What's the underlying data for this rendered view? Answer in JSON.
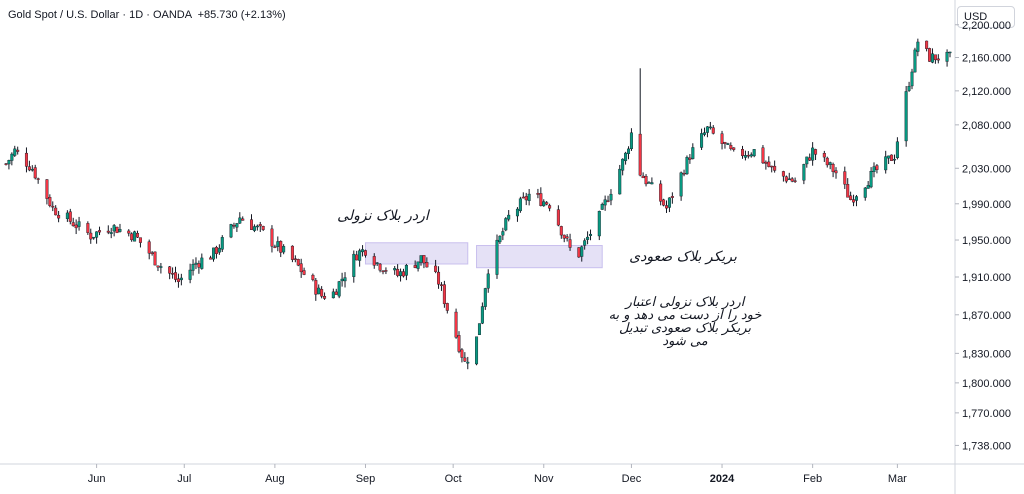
{
  "header": {
    "symbol": "Gold Spot / U.S. Dollar",
    "sep1": "·",
    "timeframe": "1D",
    "sep2": "·",
    "source": "OANDA",
    "change": "+85.730 (+2.13%)"
  },
  "currency_button": "USD",
  "annotations": {
    "bearish_order_block": "اردر بلاک نزولی",
    "bullish_breaker_block": "بریکر بلاک صعودی",
    "explanation": [
      "اردر بلاک نزولی اعتبار",
      "خود را از دست می دهد و به",
      "بریکر بلاک صعودی تبدیل",
      "می شود"
    ]
  },
  "colors": {
    "up": "#089981",
    "down": "#f23645",
    "wick": "#131722",
    "zone_fill": "#e1dcf5",
    "zone_stroke": "#c9bfee",
    "axis_text": "#131722",
    "grid": "#f0f3fa"
  },
  "chart_data": {
    "type": "candlestick",
    "instrument": "Gold Spot / U.S. Dollar",
    "interval": "1D",
    "ylim": [
      1720,
      2196
    ],
    "y_scale": "log",
    "y_ticks": [
      "1,738.000",
      "1,770.000",
      "1,800.000",
      "1,830.000",
      "1,870.000",
      "1,910.000",
      "1,950.000",
      "1,990.000",
      "2,030.000",
      "2,080.000",
      "2,120.000",
      "2,160.000",
      "2,200.000"
    ],
    "y_tick_values": [
      1738,
      1770,
      1800,
      1830,
      1870,
      1910,
      1950,
      1990,
      2030,
      2080,
      2120,
      2160,
      2200
    ],
    "x_ticks": [
      {
        "label": "Jun",
        "date": "2023-06-01",
        "bold": false
      },
      {
        "label": "Jul",
        "date": "2023-07-01",
        "bold": false
      },
      {
        "label": "Aug",
        "date": "2023-08-01",
        "bold": false
      },
      {
        "label": "Sep",
        "date": "2023-09-01",
        "bold": false
      },
      {
        "label": "Oct",
        "date": "2023-10-01",
        "bold": false
      },
      {
        "label": "Nov",
        "date": "2023-11-01",
        "bold": false
      },
      {
        "label": "Dec",
        "date": "2023-12-01",
        "bold": false
      },
      {
        "label": "2024",
        "date": "2024-01-01",
        "bold": true
      },
      {
        "label": "Feb",
        "date": "2024-02-01",
        "bold": false
      },
      {
        "label": "Mar",
        "date": "2024-03-01",
        "bold": false
      }
    ],
    "zones": [
      {
        "name": "bearish-order-block",
        "from_date": "2023-09-01",
        "to_date": "2023-10-06",
        "top": 1947,
        "bottom": 1924
      },
      {
        "name": "bullish-breaker-block",
        "from_date": "2023-10-09",
        "to_date": "2023-11-21",
        "top": 1944,
        "bottom": 1920
      }
    ],
    "anchors": [
      [
        "2023-05-01",
        2035
      ],
      [
        "2023-05-04",
        2050
      ],
      [
        "2023-05-10",
        2030
      ],
      [
        "2023-05-17",
        1985
      ],
      [
        "2023-05-30",
        1955
      ],
      [
        "2023-06-06",
        1965
      ],
      [
        "2023-06-14",
        1955
      ],
      [
        "2023-06-22",
        1925
      ],
      [
        "2023-06-29",
        1905
      ],
      [
        "2023-07-05",
        1925
      ],
      [
        "2023-07-11",
        1935
      ],
      [
        "2023-07-20",
        1975
      ],
      [
        "2023-07-27",
        1960
      ],
      [
        "2023-08-08",
        1925
      ],
      [
        "2023-08-17",
        1890
      ],
      [
        "2023-08-21",
        1893
      ],
      [
        "2023-08-29",
        1935
      ],
      [
        "2023-09-01",
        1940
      ],
      [
        "2023-09-05",
        1925
      ],
      [
        "2023-09-12",
        1912
      ],
      [
        "2023-09-20",
        1930
      ],
      [
        "2023-09-26",
        1905
      ],
      [
        "2023-10-05",
        1820
      ],
      [
        "2023-10-09",
        1845
      ],
      [
        "2023-10-13",
        1920
      ],
      [
        "2023-10-20",
        1975
      ],
      [
        "2023-10-27",
        2000
      ],
      [
        "2023-11-03",
        1990
      ],
      [
        "2023-11-10",
        1940
      ],
      [
        "2023-11-13",
        1935
      ],
      [
        "2023-11-20",
        1975
      ],
      [
        "2023-11-29",
        2045
      ],
      [
        "2023-12-01",
        2070
      ],
      [
        "2023-12-04",
        2025
      ],
      [
        "2023-12-13",
        1985
      ],
      [
        "2023-12-21",
        2045
      ],
      [
        "2023-12-27",
        2075
      ],
      [
        "2024-01-05",
        2045
      ],
      [
        "2024-01-12",
        2050
      ],
      [
        "2024-01-19",
        2025
      ],
      [
        "2024-01-26",
        2015
      ],
      [
        "2024-02-01",
        2050
      ],
      [
        "2024-02-09",
        2025
      ],
      [
        "2024-02-14",
        1995
      ],
      [
        "2024-02-22",
        2025
      ],
      [
        "2024-02-29",
        2045
      ],
      [
        "2024-03-04",
        2115
      ],
      [
        "2024-03-08",
        2180
      ],
      [
        "2024-03-12",
        2160
      ]
    ],
    "spikes": [
      {
        "date": "2023-12-04",
        "high": 2147
      }
    ]
  }
}
